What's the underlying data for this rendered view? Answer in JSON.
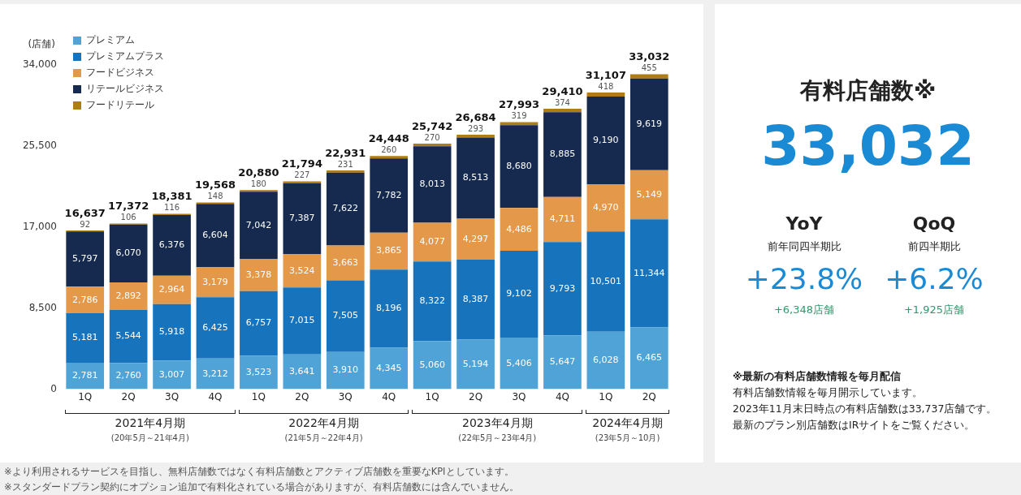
{
  "chart_data": [
    {
      "type": "bar",
      "stacked": true,
      "legend": "top left",
      "grid": false,
      "ylabel": "(店舗)",
      "categories": [
        "1Q",
        "2Q",
        "3Q",
        "4Q",
        "1Q",
        "2Q",
        "3Q",
        "4Q",
        "1Q",
        "2Q",
        "3Q",
        "4Q",
        "1Q",
        "2Q"
      ],
      "ylim": [
        0,
        34000
      ],
      "yticks": [
        {
          "value": 0,
          "label": "0"
        },
        {
          "value": 8500,
          "label": "8,500"
        },
        {
          "value": 17000,
          "label": "17,000"
        },
        {
          "value": 25500,
          "label": "25,500"
        },
        {
          "value": 34000,
          "label": "34,000"
        }
      ],
      "series": [
        {
          "name": "プレミアム",
          "color": "#4fa3d6",
          "values": [
            2781,
            2760,
            3007,
            3212,
            3523,
            3641,
            3910,
            4345,
            5060,
            5194,
            5406,
            5647,
            6028,
            6465
          ],
          "value_labels": [
            "2,781",
            "2,760",
            "3,007",
            "3,212",
            "3,523",
            "3,641",
            "3,910",
            "4,345",
            "5,060",
            "5,194",
            "5,406",
            "5,647",
            "6,028",
            "6,465"
          ]
        },
        {
          "name": "プレミアムプラス",
          "color": "#1873bd",
          "values": [
            5181,
            5544,
            5918,
            6425,
            6757,
            7015,
            7505,
            8196,
            8322,
            8387,
            9102,
            9793,
            10501,
            11344
          ],
          "value_labels": [
            "5,181",
            "5,544",
            "5,918",
            "6,425",
            "6,757",
            "7,015",
            "7,505",
            "8,196",
            "8,322",
            "8,387",
            "9,102",
            "9,793",
            "10,501",
            "11,344"
          ]
        },
        {
          "name": "フードビジネス",
          "color": "#e3984a",
          "values": [
            2786,
            2892,
            2964,
            3179,
            3378,
            3524,
            3663,
            3865,
            4077,
            4297,
            4486,
            4711,
            4970,
            5149
          ],
          "value_labels": [
            "2,786",
            "2,892",
            "2,964",
            "3,179",
            "3,378",
            "3,524",
            "3,663",
            "3,865",
            "4,077",
            "4,297",
            "4,486",
            "4,711",
            "4,970",
            "5,149"
          ]
        },
        {
          "name": "リテールビジネス",
          "color": "#152a4e",
          "values": [
            5797,
            6070,
            6376,
            6604,
            7042,
            7387,
            7622,
            7782,
            8013,
            8513,
            8680,
            8885,
            9190,
            9619
          ],
          "value_labels": [
            "5,797",
            "6,070",
            "6,376",
            "6,604",
            "7,042",
            "7,387",
            "7,622",
            "7,782",
            "8,013",
            "8,513",
            "8,680",
            "8,885",
            "9,190",
            "9,619"
          ]
        },
        {
          "name": "フードリテール",
          "color": "#b07d14",
          "values": [
            92,
            106,
            116,
            148,
            180,
            227,
            231,
            260,
            270,
            293,
            319,
            374,
            418,
            455
          ],
          "value_labels": [
            "92",
            "106",
            "116",
            "148",
            "180",
            "227",
            "231",
            "260",
            "270",
            "293",
            "319",
            "374",
            "418",
            "455"
          ]
        }
      ],
      "totals": [
        "16,637",
        "17,372",
        "18,381",
        "19,568",
        "20,880",
        "21,794",
        "22,931",
        "24,448",
        "25,742",
        "26,684",
        "27,993",
        "29,410",
        "31,107",
        "33,032"
      ],
      "annotations": [
        "2021年4月期",
        "(20年5月～21年4月)",
        "2022年4月期",
        "(21年5月～22年4月)",
        "2023年4月期",
        "(22年5月～23年4月)",
        "2024年4月期",
        "(23年5月～10月)",
        "※より利用されるサービスを目指し、無料店舗数ではなく有料店舗数とアクティブ店舗数を重要なKPIとしています。",
        "※スタンダードプラン契約にオプション追加で有料化されている場合がありますが、有料店舗数には含んでいません。"
      ]
    },
    {
      "type": "other",
      "title": "有料店舗数※",
      "annotations": [
        "33,032",
        "YoY",
        "前年同四半期比",
        "+23.8%",
        "+6,348店舗",
        "QoQ",
        "前四半期比",
        "+6.2%",
        "+1,925店舗",
        "※最新の有料店舗数情報を毎月配信",
        "有料店舗数情報を毎月開示しています。",
        "2023年11月末日時点の有料店舗数は33,737店舗です。",
        "最新のプラン別店舗数はIRサイトをご覧ください。"
      ]
    }
  ]
}
